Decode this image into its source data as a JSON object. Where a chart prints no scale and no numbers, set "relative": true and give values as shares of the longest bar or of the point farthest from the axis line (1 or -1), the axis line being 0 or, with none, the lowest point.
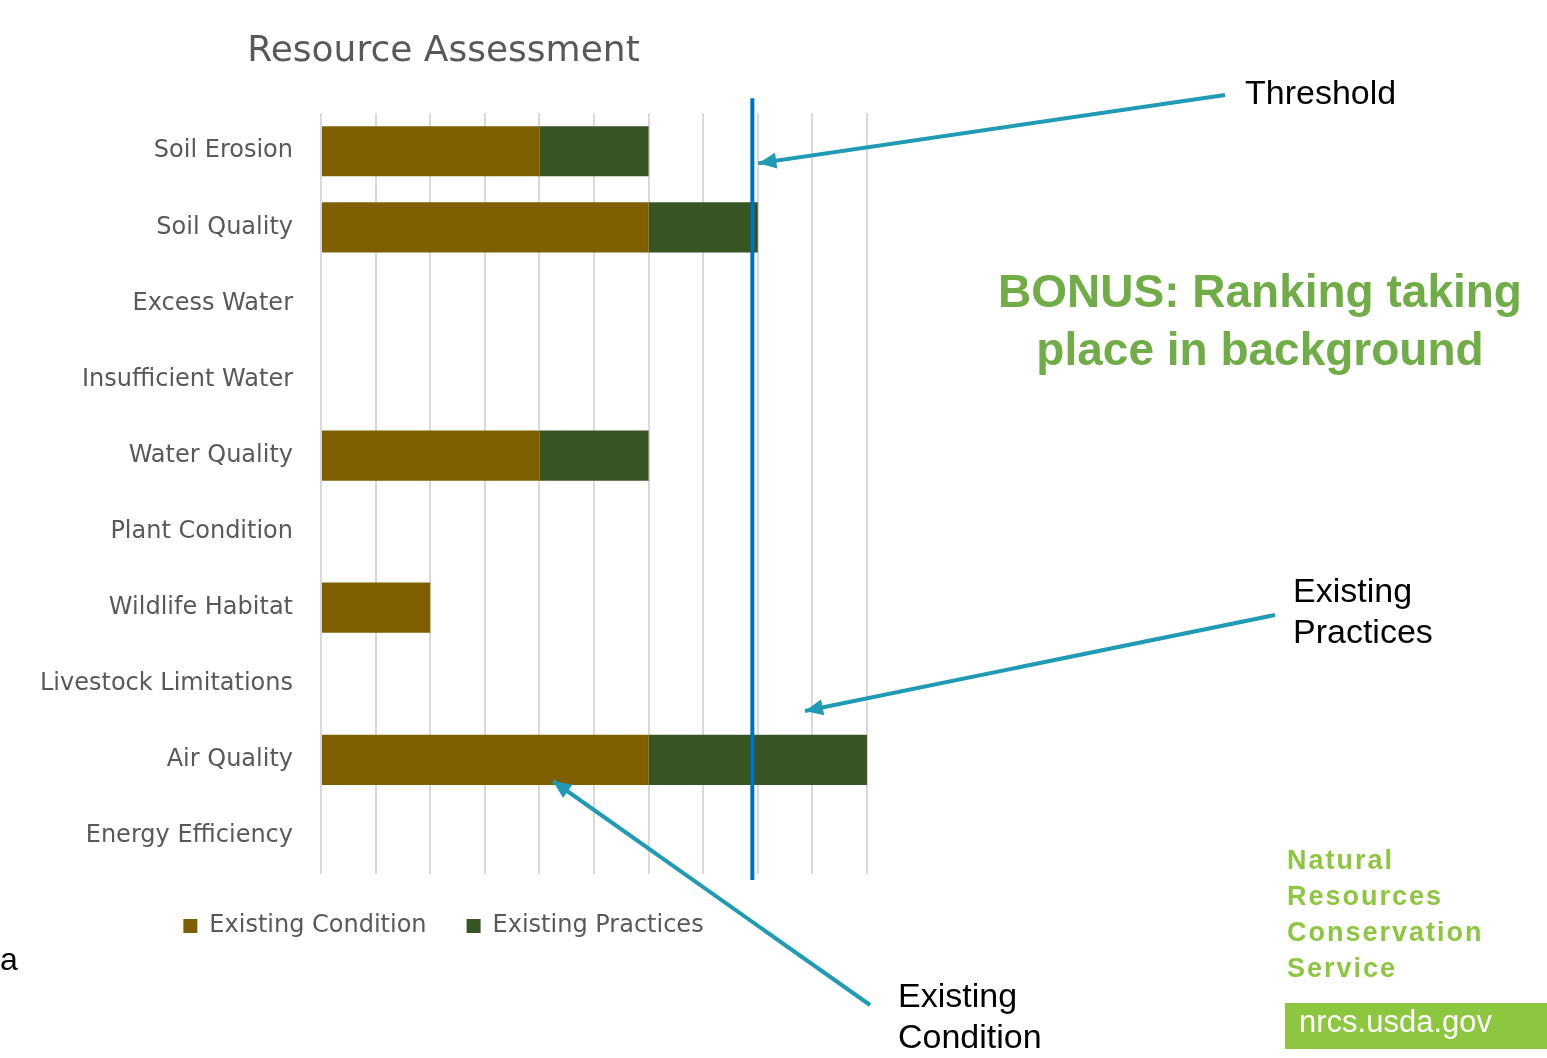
{
  "chart_data": {
    "type": "bar",
    "orientation": "horizontal",
    "stacked": true,
    "relative": true,
    "title": "Resource Assessment",
    "categories": [
      "Soil Erosion",
      "Soil Quality",
      "Excess Water",
      "Insufficient Water",
      "Water Quality",
      "Plant Condition",
      "Wildlife Habitat",
      "Livestock Limitations",
      "Air Quality",
      "Energy Efficiency"
    ],
    "series": [
      {
        "name": "Existing Condition",
        "color": "#7f6000",
        "values": [
          0.4,
          0.6,
          null,
          null,
          0.4,
          null,
          0.2,
          null,
          0.6,
          null
        ]
      },
      {
        "name": "Existing Practices",
        "color": "#375623",
        "values": [
          0.2,
          0.2,
          null,
          null,
          0.2,
          null,
          null,
          null,
          0.4,
          null
        ]
      }
    ],
    "ref_lines": [
      {
        "axis": "x",
        "value": 0.79,
        "label": "Threshold",
        "color": "#0070c0"
      }
    ],
    "annotations": [
      "BONUS: Ranking taking place in background",
      "Existing Practices",
      "Existing Condition",
      "Natural Resources Conservation Service",
      "nrcs.usda.gov",
      "a"
    ],
    "grid": "x",
    "legend": "bottom"
  }
}
